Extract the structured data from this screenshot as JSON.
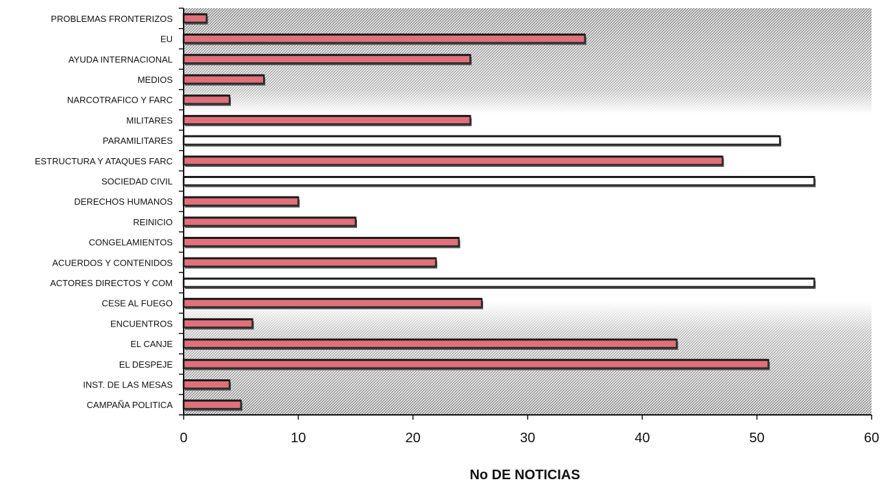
{
  "chart_data": {
    "type": "bar",
    "orientation": "horizontal",
    "xlabel": "No DE NOTICIAS",
    "ylabel": "",
    "title": "",
    "xlim": [
      0,
      60
    ],
    "xticks": [
      0,
      10,
      20,
      30,
      40,
      50,
      60
    ],
    "grid": false,
    "categories": [
      "PROBLEMAS FRONTERIZOS",
      "EU",
      "AYUDA INTERNACIONAL",
      "MEDIOS",
      "NARCOTRAFICO Y FARC",
      "MILITARES",
      "PARAMILITARES",
      "ESTRUCTURA Y ATAQUES FARC",
      "SOCIEDAD CIVIL",
      "DERECHOS HUMANOS",
      "REINICIO",
      "CONGELAMIENTOS",
      "ACUERDOS Y CONTENIDOS",
      "ACTORES DIRECTOS Y COM",
      "CESE AL FUEGO",
      "ENCUENTROS",
      "EL CANJE",
      "EL DESPEJE",
      "INST. DE LAS MESAS",
      "CAMPAÑA POLITICA"
    ],
    "values": [
      2,
      35,
      25,
      7,
      4,
      25,
      52,
      47,
      55,
      10,
      15,
      24,
      22,
      55,
      26,
      6,
      43,
      51,
      4,
      5
    ],
    "highlighted": [
      "PARAMILITARES",
      "SOCIEDAD CIVIL",
      "ACTORES DIRECTOS Y COM"
    ],
    "colors": {
      "bar_fill": "#e0707a",
      "bar_highlight_fill": "#ffffff",
      "bar_edge": "#2b2b2b",
      "bar_shadow": "#555555",
      "background_dark": "#a8a8a8",
      "background_light": "#ffffff"
    }
  }
}
